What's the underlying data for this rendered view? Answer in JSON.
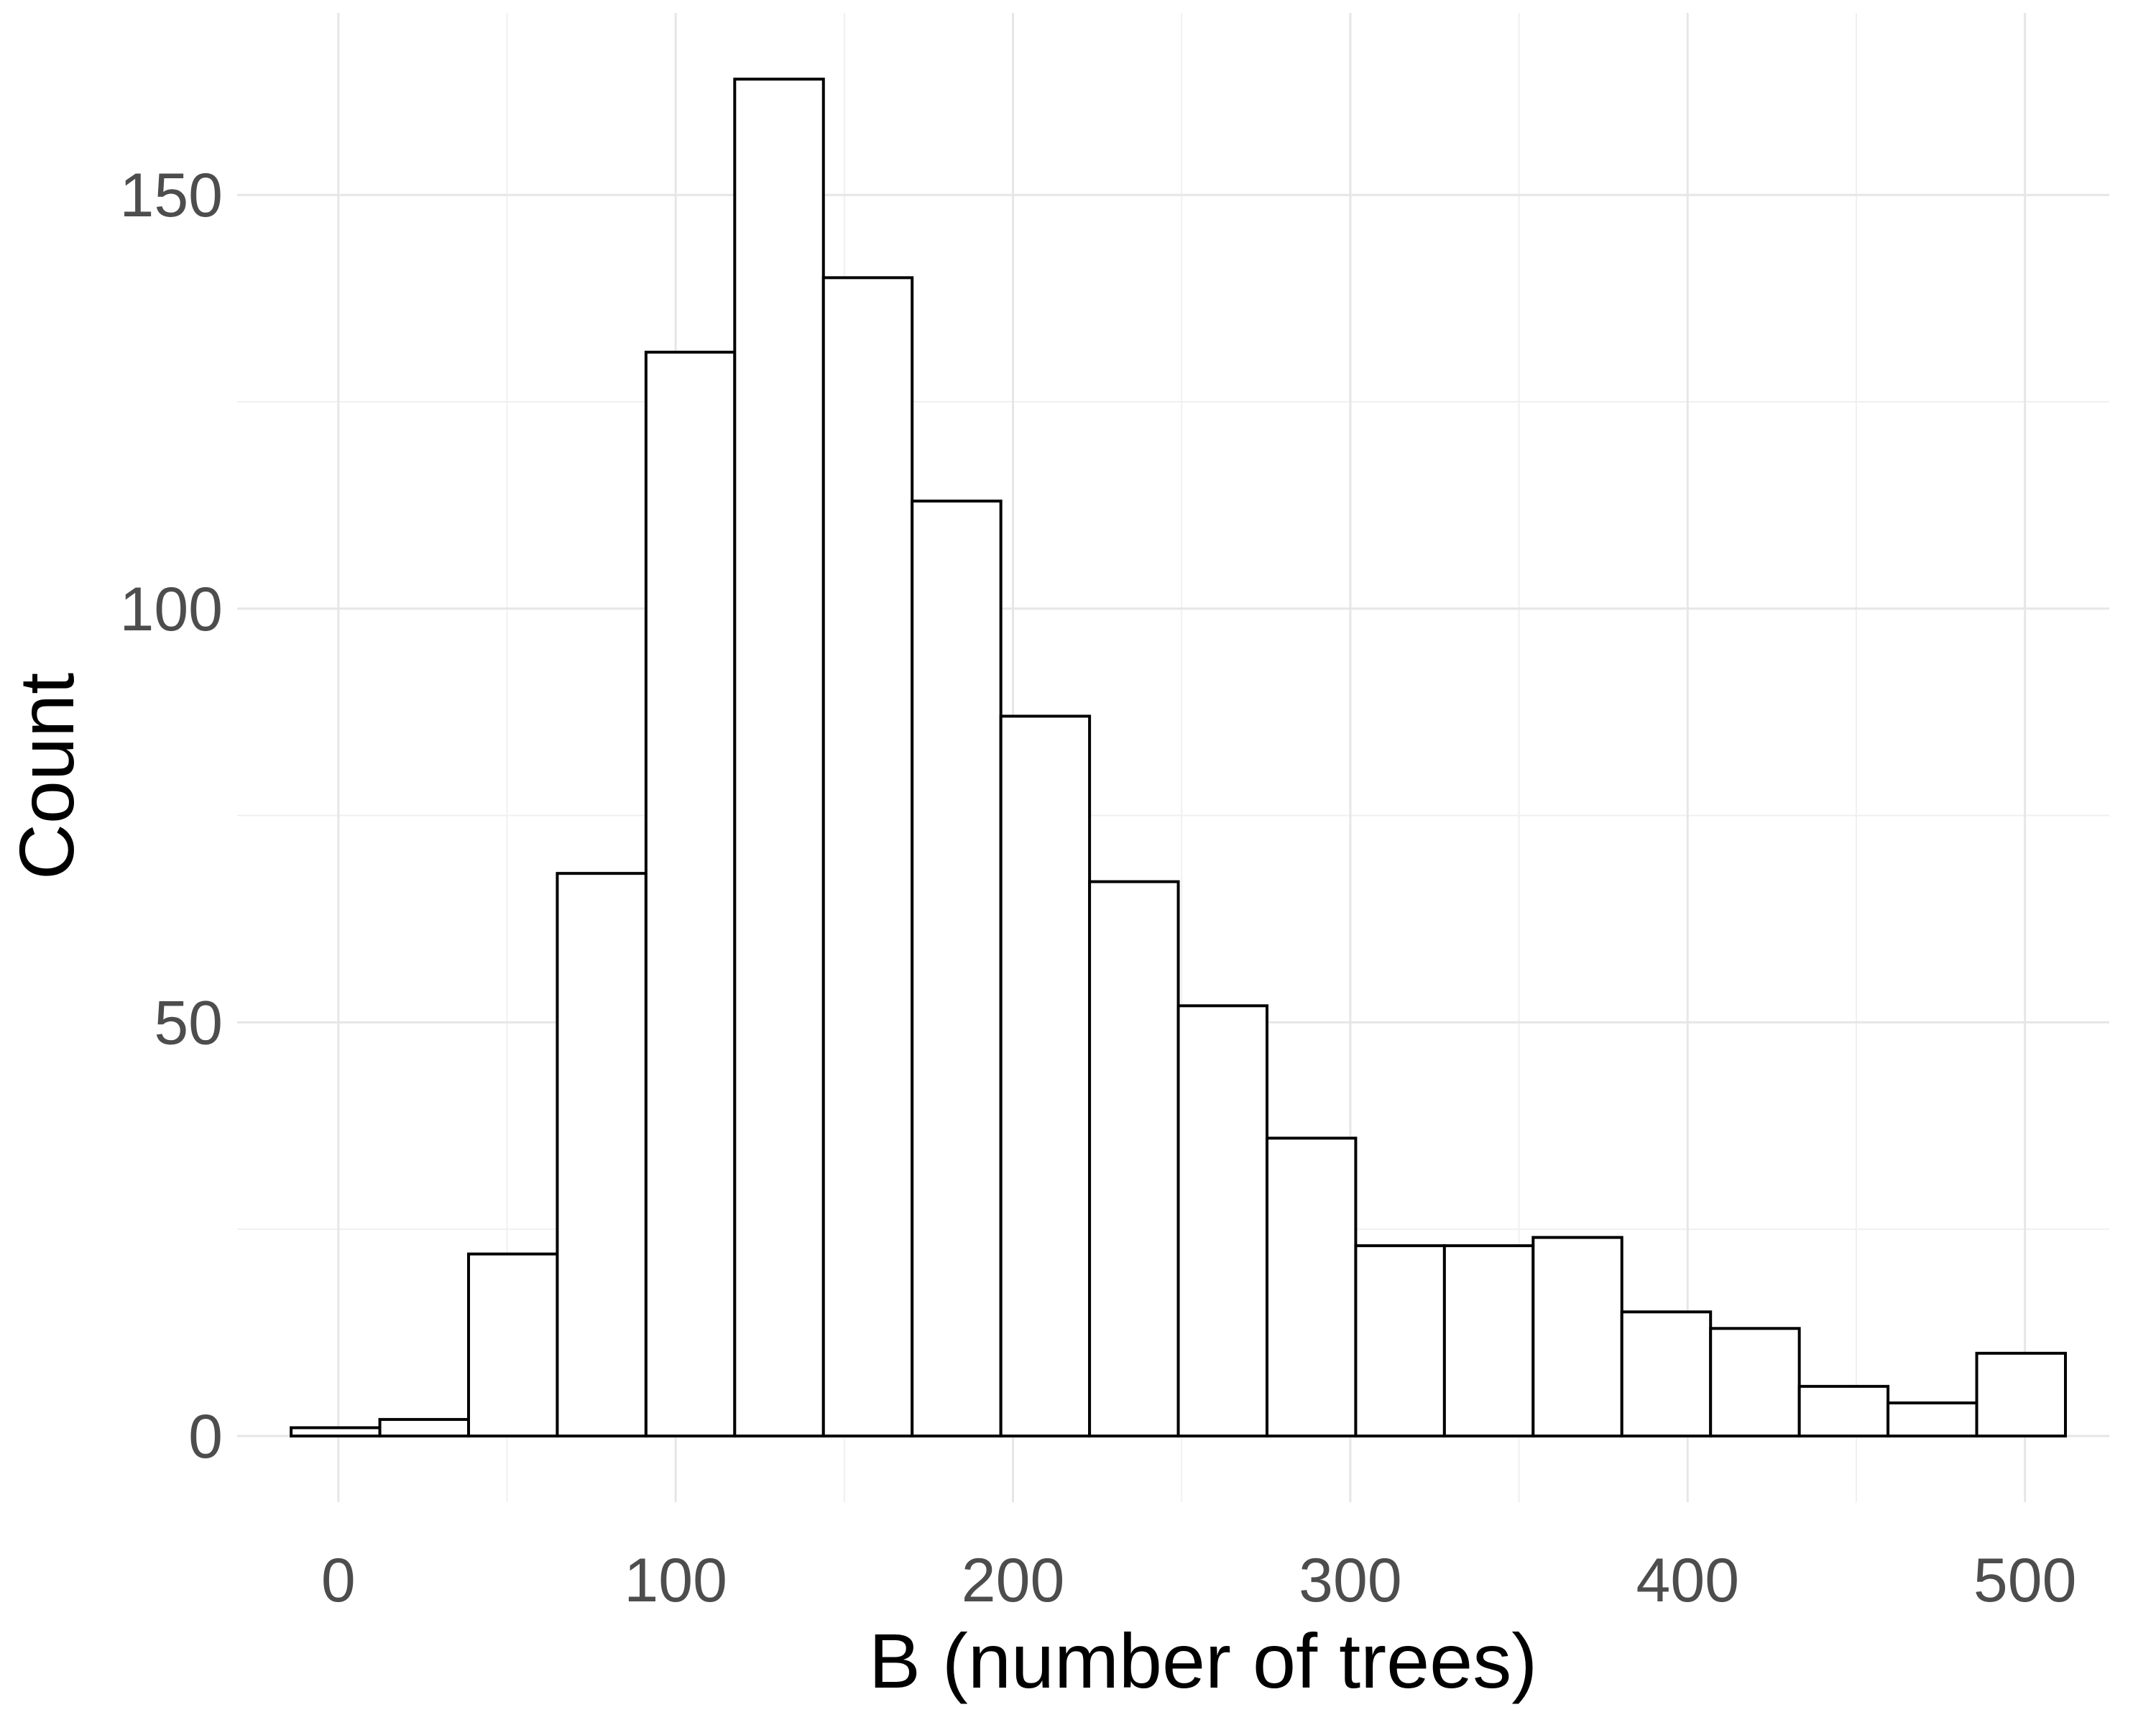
{
  "chart_data": {
    "type": "bar",
    "subtype": "histogram",
    "title": "",
    "xlabel": "B (number of trees)",
    "ylabel": "Count",
    "xlim": [
      -30,
      525
    ],
    "ylim": [
      -8,
      172
    ],
    "x_ticks": [
      0,
      100,
      200,
      300,
      400,
      500
    ],
    "x_tick_labels": [
      "0",
      "100",
      "200",
      "300",
      "400",
      "500"
    ],
    "y_ticks": [
      0,
      50,
      100,
      150
    ],
    "y_tick_labels": [
      "0",
      "50",
      "100",
      "150"
    ],
    "x_minor_ticks": [
      50,
      150,
      250,
      350,
      450
    ],
    "y_minor_ticks": [
      25,
      75,
      125
    ],
    "grid": true,
    "bin_width": 26.3,
    "bin_starts": [
      -14,
      12.3,
      38.6,
      64.9,
      91.2,
      117.5,
      143.8,
      170.1,
      196.4,
      222.7,
      249,
      275.3,
      301.6,
      327.9,
      354.2,
      380.5,
      406.8,
      433.1,
      459.4,
      485.7
    ],
    "values": [
      1,
      2,
      22,
      68,
      131,
      164,
      140,
      113,
      87,
      67,
      52,
      36,
      23,
      23,
      24,
      15,
      13,
      6,
      4,
      10
    ]
  }
}
